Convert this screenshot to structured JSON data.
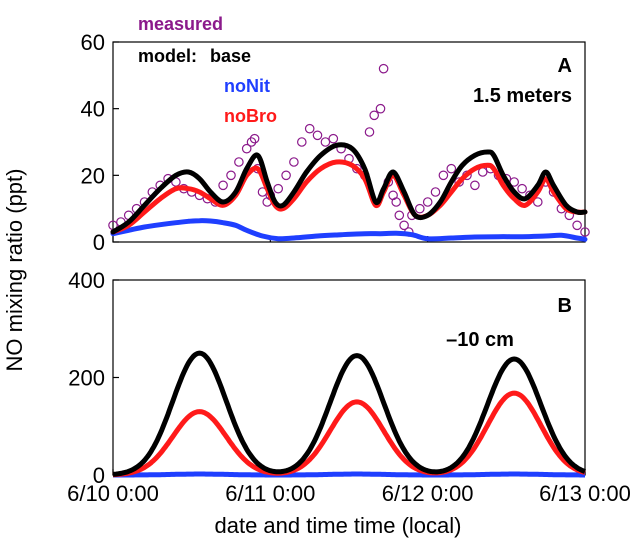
{
  "shared_x": {
    "label": "date and time time (local)",
    "ticks": [
      0,
      1,
      2,
      3
    ],
    "tick_labels": [
      "6/10 0:00",
      "6/11 0:00",
      "6/12 0:00",
      "6/13 0:00"
    ],
    "xlim": [
      0,
      3
    ]
  },
  "shared_y_label": "NO mixing ratio (ppt)",
  "colors": {
    "measured": "#8b1a8b",
    "base": "#000000",
    "noNit": "#1f3fff",
    "noBro": "#ff1a1a"
  },
  "chart_data": [
    {
      "type": "line",
      "panel": "A",
      "annotation": "1.5 meters",
      "ylim": [
        0,
        60
      ],
      "yticks": [
        0,
        20,
        40,
        60
      ],
      "legend": {
        "placement": "top-left",
        "entries": {
          "measured": "measured",
          "model": "model:",
          "base": "base",
          "noNit": "noNit",
          "noBro": "noBro"
        }
      },
      "series": [
        {
          "name": "base",
          "style": "line",
          "x": [
            0.0,
            0.1,
            0.2,
            0.3,
            0.4,
            0.48,
            0.55,
            0.62,
            0.7,
            0.78,
            0.85,
            0.92,
            0.98,
            1.03,
            1.08,
            1.15,
            1.23,
            1.32,
            1.42,
            1.52,
            1.6,
            1.67,
            1.72,
            1.78,
            1.85,
            1.92,
            2.0,
            2.08,
            2.15,
            2.22,
            2.3,
            2.38,
            2.42,
            2.48,
            2.55,
            2.62,
            2.7,
            2.75,
            2.8,
            2.88,
            2.95,
            3.0
          ],
          "y": [
            3,
            6,
            11,
            16,
            20,
            21,
            19,
            15,
            12,
            15,
            22,
            26,
            18,
            12,
            11,
            15,
            21,
            26,
            29,
            28,
            22,
            12,
            16,
            21,
            15,
            8,
            8,
            12,
            18,
            23,
            26,
            27,
            26,
            20,
            15,
            13,
            17,
            21,
            17,
            11,
            9,
            9
          ]
        },
        {
          "name": "noNit",
          "style": "line",
          "x": [
            0.0,
            0.1,
            0.2,
            0.3,
            0.4,
            0.48,
            0.55,
            0.62,
            0.7,
            0.78,
            0.85,
            0.95,
            1.05,
            1.15,
            1.3,
            1.45,
            1.6,
            1.7,
            1.8,
            1.9,
            2.0,
            2.15,
            2.3,
            2.45,
            2.6,
            2.75,
            2.85,
            2.95,
            3.0
          ],
          "y": [
            2.5,
            3.5,
            4.5,
            5.2,
            5.8,
            6.2,
            6.4,
            6.3,
            5.8,
            5.0,
            3.5,
            1.8,
            1.0,
            1.2,
            1.8,
            2.2,
            2.5,
            2.5,
            2.6,
            2.2,
            1.0,
            1.2,
            1.5,
            1.6,
            1.6,
            1.8,
            2.0,
            1.2,
            0.8
          ]
        },
        {
          "name": "noBro",
          "style": "line",
          "x": [
            0.0,
            0.1,
            0.2,
            0.3,
            0.4,
            0.48,
            0.55,
            0.62,
            0.7,
            0.78,
            0.85,
            0.92,
            0.98,
            1.03,
            1.08,
            1.15,
            1.23,
            1.32,
            1.42,
            1.52,
            1.6,
            1.67,
            1.72,
            1.78,
            1.85,
            1.92,
            2.0,
            2.08,
            2.15,
            2.22,
            2.3,
            2.38,
            2.42,
            2.48,
            2.55,
            2.62,
            2.7,
            2.75,
            2.8,
            2.88,
            2.95,
            3.0
          ],
          "y": [
            3,
            5,
            9,
            13,
            16,
            16,
            15,
            13,
            11,
            14,
            20,
            22,
            16,
            11,
            10,
            13,
            18,
            22,
            24,
            23,
            19,
            11,
            15,
            20,
            14,
            8,
            8,
            11,
            15,
            19,
            22,
            23,
            22,
            17,
            13,
            11,
            15,
            19,
            15,
            10,
            9,
            9
          ]
        },
        {
          "name": "measured",
          "style": "scatter",
          "x": [
            0.0,
            0.05,
            0.1,
            0.15,
            0.2,
            0.25,
            0.3,
            0.35,
            0.4,
            0.45,
            0.5,
            0.55,
            0.6,
            0.65,
            0.7,
            0.75,
            0.8,
            0.85,
            0.88,
            0.9,
            0.92,
            0.95,
            0.98,
            1.0,
            1.05,
            1.1,
            1.15,
            1.2,
            1.25,
            1.3,
            1.35,
            1.4,
            1.45,
            1.5,
            1.55,
            1.6,
            1.63,
            1.66,
            1.7,
            1.72,
            1.75,
            1.78,
            1.8,
            1.82,
            1.85,
            1.88,
            1.9,
            1.95,
            2.0,
            2.05,
            2.1,
            2.15,
            2.2,
            2.25,
            2.3,
            2.35,
            2.4,
            2.45,
            2.5,
            2.55,
            2.6,
            2.65,
            2.7,
            2.75,
            2.8,
            2.85,
            2.9,
            2.95,
            3.0
          ],
          "y": [
            5,
            6,
            8,
            10,
            12,
            15,
            17,
            19,
            18,
            16,
            15,
            14,
            13,
            12,
            17,
            20,
            24,
            28,
            30,
            31,
            22,
            15,
            12,
            14,
            16,
            20,
            24,
            30,
            34,
            32,
            30,
            31,
            28,
            25,
            22,
            20,
            33,
            38,
            40,
            52,
            18,
            14,
            12,
            8,
            5,
            3,
            8,
            10,
            12,
            15,
            20,
            22,
            18,
            20,
            17,
            21,
            22,
            20,
            19,
            18,
            16,
            14,
            12,
            18,
            15,
            10,
            8,
            5,
            3
          ]
        }
      ]
    },
    {
      "type": "line",
      "panel": "B",
      "annotation": "–10 cm",
      "ylim": [
        0,
        400
      ],
      "yticks": [
        0,
        200,
        400
      ],
      "series": [
        {
          "name": "base",
          "style": "line",
          "peaks": [
            250,
            245,
            238
          ],
          "peak_x": [
            0.55,
            1.55,
            2.55
          ],
          "width": 0.17
        },
        {
          "name": "noBro",
          "style": "line",
          "peaks": [
            130,
            150,
            168
          ],
          "peak_x": [
            0.55,
            1.55,
            2.55
          ],
          "width": 0.17
        },
        {
          "name": "noNit",
          "style": "line",
          "peaks": [
            2,
            2,
            2
          ],
          "peak_x": [
            0.55,
            1.55,
            2.55
          ],
          "width": 0.17
        }
      ]
    }
  ]
}
